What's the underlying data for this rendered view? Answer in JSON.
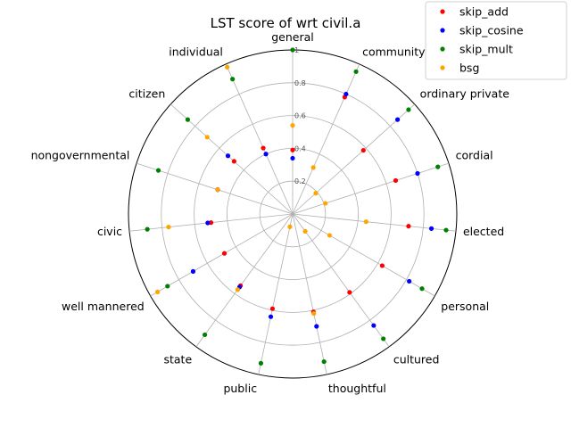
{
  "chart_data": {
    "type": "radar",
    "title": "LST score of wrt civil.a",
    "categories": [
      "general",
      "community",
      "ordinary private",
      "cordial",
      "elected",
      "personal",
      "cultured",
      "thoughtful",
      "public",
      "state",
      "well mannered",
      "civic",
      "nongovernmental",
      "citizen",
      "individual"
    ],
    "rlim": [
      0,
      1
    ],
    "rticks": [
      "0.2",
      "0.4",
      "0.6",
      "0.8",
      "1"
    ],
    "rtick_values": [
      0.2,
      0.4,
      0.6,
      0.8,
      1.0
    ],
    "grid": true,
    "legend_position": "top-right",
    "series": [
      {
        "name": "skip_add",
        "color": "#ff0000",
        "values": [
          0.39,
          0.78,
          0.58,
          0.66,
          0.71,
          0.63,
          0.59,
          0.61,
          0.59,
          0.54,
          0.48,
          0.5,
          0.48,
          0.48,
          0.44
        ]
      },
      {
        "name": "skip_cosine",
        "color": "#0000ff",
        "values": [
          0.34,
          0.8,
          0.86,
          0.8,
          0.85,
          0.82,
          0.84,
          0.7,
          0.64,
          0.55,
          0.7,
          0.52,
          0.48,
          0.53,
          0.4
        ]
      },
      {
        "name": "skip_mult",
        "color": "#008000",
        "values": [
          1.0,
          0.95,
          0.95,
          0.93,
          0.94,
          0.91,
          0.94,
          0.92,
          0.93,
          0.91,
          0.88,
          0.89,
          0.86,
          0.86,
          0.9
        ]
      },
      {
        "name": "bsg",
        "color": "#ffa500",
        "values": [
          0.54,
          0.31,
          0.19,
          0.21,
          0.45,
          0.26,
          0.13,
          0.62,
          0.08,
          0.57,
          0.95,
          0.76,
          0.48,
          0.7,
          0.98
        ]
      }
    ]
  }
}
